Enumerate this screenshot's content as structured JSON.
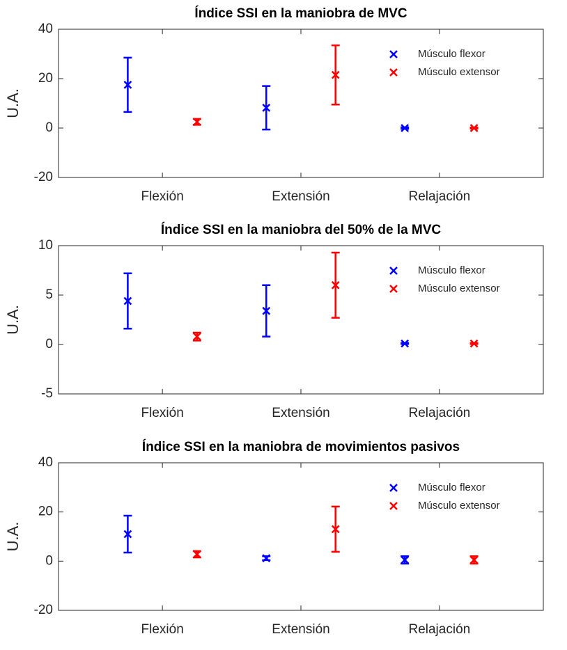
{
  "chart_data": [
    {
      "type": "errorbar",
      "title": "Índice SSI en la maniobra de MVC",
      "y_label": "U.A.",
      "categories": [
        "Flexión",
        "Extensión",
        "Relajación"
      ],
      "ylim": [
        -20,
        40
      ],
      "yticks": [
        -20,
        0,
        20,
        40
      ],
      "legend": "upper right",
      "marker": "x",
      "series": [
        {
          "name": "Músculo flexor",
          "color": "#0000ff",
          "values": [
            17.5,
            8.2,
            0
          ],
          "errors": [
            11,
            8.8,
            0.3
          ]
        },
        {
          "name": "Músculo extensor",
          "color": "#ff0000",
          "values": [
            2.5,
            21.5,
            0
          ],
          "errors": [
            1.2,
            12,
            0.2
          ]
        }
      ]
    },
    {
      "type": "errorbar",
      "title": "Índice SSI en la maniobra del 50% de la MVC",
      "y_label": "U.A.",
      "categories": [
        "Flexión",
        "Extensión",
        "Relajación"
      ],
      "ylim": [
        -5,
        10
      ],
      "yticks": [
        -5,
        0,
        5,
        10
      ],
      "legend": "upper right",
      "marker": "x",
      "series": [
        {
          "name": "Músculo flexor",
          "color": "#0000ff",
          "values": [
            4.4,
            3.4,
            0.1
          ],
          "errors": [
            2.8,
            2.6,
            0.05
          ]
        },
        {
          "name": "Músculo extensor",
          "color": "#ff0000",
          "values": [
            0.8,
            6,
            0.1
          ],
          "errors": [
            0.4,
            3.3,
            0.05
          ]
        }
      ]
    },
    {
      "type": "errorbar",
      "title": "Índice SSI en la maniobra de movimientos pasivos",
      "y_label": "U.A.",
      "categories": [
        "Flexión",
        "Extensión",
        "Relajación"
      ],
      "ylim": [
        -20,
        40
      ],
      "yticks": [
        -20,
        0,
        20,
        40
      ],
      "legend": "upper right",
      "marker": "x",
      "series": [
        {
          "name": "Músculo flexor",
          "color": "#0000ff",
          "values": [
            11,
            1.2,
            0.5
          ],
          "errors": [
            7.5,
            0.8,
            1.5
          ]
        },
        {
          "name": "Músculo extensor",
          "color": "#ff0000",
          "values": [
            2.8,
            13,
            0.5
          ],
          "errors": [
            1.3,
            9.2,
            1.5
          ]
        }
      ]
    }
  ]
}
